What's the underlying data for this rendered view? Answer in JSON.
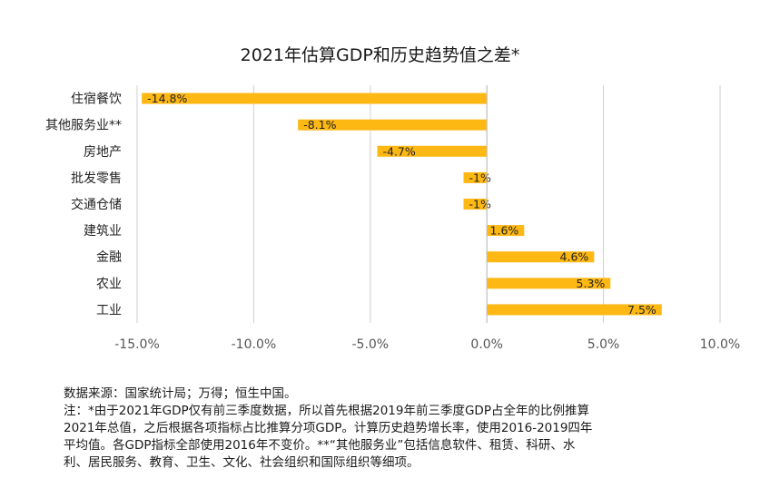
{
  "chart_data": {
    "type": "bar",
    "orientation": "horizontal",
    "title": "2021年估算GDP和历史趋势值之差*",
    "categories": [
      "住宿餐饮",
      "其他服务业**",
      "房地产",
      "批发零售",
      "交通仓储",
      "建筑业",
      "金融",
      "农业",
      "工业"
    ],
    "values": [
      -14.8,
      -8.1,
      -4.7,
      -1.0,
      -1.0,
      1.6,
      4.6,
      5.3,
      7.5
    ],
    "data_labels": [
      "-14.8%",
      "-8.1%",
      "-4.7%",
      "-1%",
      "-1%",
      "1.6%",
      "4.6%",
      "5.3%",
      "7.5%"
    ],
    "xlim": [
      -15.0,
      10.0
    ],
    "x_ticks": [
      -15.0,
      -10.0,
      -5.0,
      0.0,
      5.0,
      10.0
    ],
    "x_tick_labels": [
      "-15.0%",
      "-10.0%",
      "-5.0%",
      "0.0%",
      "5.0%",
      "10.0%"
    ],
    "bar_color": "#FDB813",
    "grid": "vertical",
    "xlabel": "",
    "ylabel": ""
  },
  "notes": {
    "source": "数据来源：国家统计局；万得；恒生中国。",
    "note_lines": [
      "注：*由于2021年GDP仅有前三季度数据，所以首先根据2019年前三季度GDP占全年的比例推算",
      "2021年总值，之后根据各项指标占比推算分项GDP。计算历史趋势增长率，使用2016-2019四年",
      "平均值。各GDP指标全部使用2016年不变价。**“其他服务业”包括信息软件、租赁、科研、水",
      "利、居民服务、教育、卫生、文化、社会组织和国际组织等细项。"
    ]
  }
}
